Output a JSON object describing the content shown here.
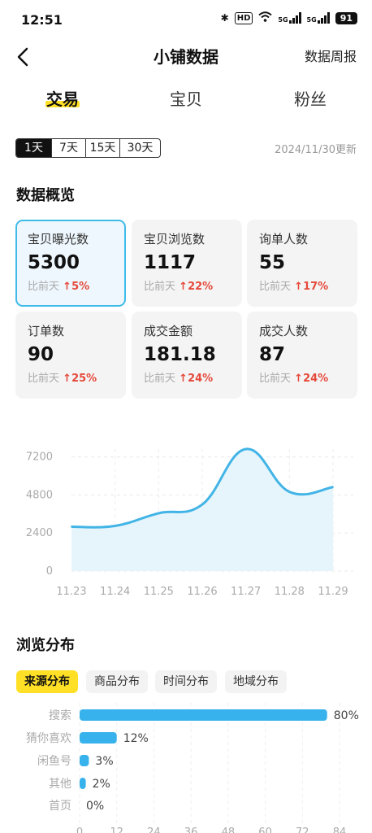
{
  "status": {
    "time": "12:51",
    "hd": "HD",
    "net1": "5G",
    "net2": "5G",
    "battery": "91"
  },
  "header": {
    "title": "小铺数据",
    "weekly_link": "数据周报"
  },
  "tabs": [
    {
      "label": "交易",
      "active": true
    },
    {
      "label": "宝贝"
    },
    {
      "label": "粉丝"
    }
  ],
  "range": {
    "options": [
      "1天",
      "7天",
      "15天",
      "30天"
    ],
    "selected": "1天",
    "updated": "2024/11/30更新"
  },
  "overview": {
    "title": "数据概览",
    "compare_label": "比前天",
    "cards": [
      {
        "label": "宝贝曝光数",
        "value": "5300",
        "change": "5%"
      },
      {
        "label": "宝贝浏览数",
        "value": "1117",
        "change": "22%"
      },
      {
        "label": "询单人数",
        "value": "55",
        "change": "17%"
      },
      {
        "label": "订单数",
        "value": "90",
        "change": "25%"
      },
      {
        "label": "成交金额",
        "value": "181.18",
        "change": "24%"
      },
      {
        "label": "成交人数",
        "value": "87",
        "change": "24%"
      }
    ]
  },
  "browse": {
    "title": "浏览分布",
    "subtabs": [
      "来源分布",
      "商品分布",
      "时间分布",
      "地域分布"
    ],
    "selected_subtab": "来源分布"
  },
  "chart_data": [
    {
      "type": "area",
      "x": [
        "11.23",
        "11.24",
        "11.25",
        "11.26",
        "11.27",
        "11.28",
        "11.29"
      ],
      "series": [
        {
          "values": [
            2800,
            2850,
            3650,
            4200,
            7700,
            5000,
            5300
          ]
        }
      ],
      "yticks": [
        0,
        2400,
        4800,
        7200
      ],
      "ylim": [
        0,
        7700
      ],
      "color": "#42b4e6",
      "grid": true
    },
    {
      "type": "bar",
      "orientation": "horizontal",
      "categories": [
        "搜索",
        "猜你喜欢",
        "闲鱼号",
        "其他",
        "首页"
      ],
      "values": [
        80,
        12,
        3,
        2,
        0
      ],
      "value_labels": [
        "80%",
        "12%",
        "3%",
        "2%",
        "0%"
      ],
      "xticks": [
        0,
        12,
        24,
        36,
        48,
        60,
        72,
        84
      ],
      "color": "#38b2ec"
    }
  ]
}
